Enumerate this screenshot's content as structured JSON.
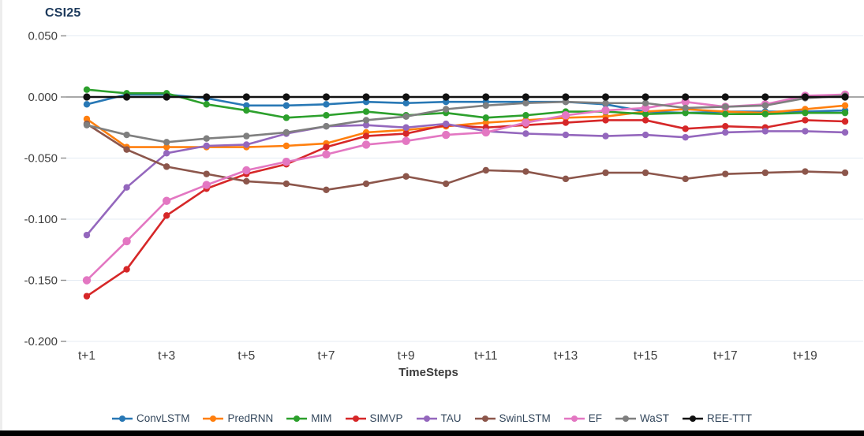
{
  "chart": {
    "title": "CSI25",
    "xlabel": "TimeSteps"
  },
  "chart_data": {
    "type": "line",
    "title": "CSI25",
    "xlabel": "TimeSteps",
    "ylabel": "",
    "ylim": [
      -0.2,
      0.05
    ],
    "grid": true,
    "legend_position": "bottom",
    "categories": [
      "t+1",
      "t+2",
      "t+3",
      "t+4",
      "t+5",
      "t+6",
      "t+7",
      "t+8",
      "t+9",
      "t+10",
      "t+11",
      "t+12",
      "t+13",
      "t+14",
      "t+15",
      "t+16",
      "t+17",
      "t+18",
      "t+19",
      "t+20"
    ],
    "xticks": [
      "t+1",
      "t+3",
      "t+5",
      "t+7",
      "t+9",
      "t+11",
      "t+13",
      "t+15",
      "t+17",
      "t+19"
    ],
    "xtick_steps": [
      1,
      3,
      5,
      7,
      9,
      11,
      13,
      15,
      17,
      19
    ],
    "ytick_values": [
      0.05,
      0.0,
      -0.05,
      -0.1,
      -0.15,
      -0.2
    ],
    "ytick_labels": [
      "0.050",
      "0.000",
      "-0.050",
      "-0.100",
      "-0.150",
      "-0.200"
    ],
    "gridline_color": "#e4ebf3",
    "axis_line_color": "#8c8c8c",
    "series": [
      {
        "name": "ConvLSTM",
        "color": "#2878b5",
        "values": [
          -0.006,
          0.002,
          0.002,
          -0.001,
          -0.007,
          -0.007,
          -0.006,
          -0.004,
          -0.005,
          -0.004,
          -0.004,
          -0.004,
          -0.004,
          -0.006,
          -0.012,
          -0.013,
          -0.012,
          -0.012,
          -0.012,
          -0.011
        ]
      },
      {
        "name": "PredRNN",
        "color": "#ff7f0e",
        "values": [
          -0.018,
          -0.041,
          -0.041,
          -0.041,
          -0.041,
          -0.04,
          -0.038,
          -0.029,
          -0.027,
          -0.024,
          -0.021,
          -0.019,
          -0.017,
          -0.016,
          -0.012,
          -0.01,
          -0.012,
          -0.013,
          -0.01,
          -0.007
        ]
      },
      {
        "name": "MIM",
        "color": "#2ca02c",
        "values": [
          0.006,
          0.003,
          0.003,
          -0.006,
          -0.011,
          -0.017,
          -0.015,
          -0.012,
          -0.015,
          -0.013,
          -0.017,
          -0.015,
          -0.012,
          -0.012,
          -0.014,
          -0.013,
          -0.014,
          -0.014,
          -0.013,
          -0.013
        ]
      },
      {
        "name": "SIMVP",
        "color": "#d62728",
        "values": [
          -0.163,
          -0.141,
          -0.097,
          -0.075,
          -0.063,
          -0.055,
          -0.041,
          -0.032,
          -0.03,
          -0.023,
          -0.025,
          -0.023,
          -0.021,
          -0.019,
          -0.019,
          -0.026,
          -0.024,
          -0.025,
          -0.019,
          -0.02
        ]
      },
      {
        "name": "TAU",
        "color": "#9467bd",
        "values": [
          -0.113,
          -0.074,
          -0.046,
          -0.04,
          -0.039,
          -0.03,
          -0.024,
          -0.023,
          -0.025,
          -0.022,
          -0.028,
          -0.03,
          -0.031,
          -0.032,
          -0.031,
          -0.033,
          -0.029,
          -0.028,
          -0.028,
          -0.029
        ]
      },
      {
        "name": "SwinLSTM",
        "color": "#8c564b",
        "values": [
          -0.022,
          -0.043,
          -0.057,
          -0.063,
          -0.069,
          -0.071,
          -0.076,
          -0.071,
          -0.065,
          -0.071,
          -0.06,
          -0.061,
          -0.067,
          -0.062,
          -0.062,
          -0.067,
          -0.063,
          -0.062,
          -0.061,
          -0.062
        ]
      },
      {
        "name": "EF",
        "color": "#e377c2",
        "values": [
          -0.15,
          -0.118,
          -0.085,
          -0.072,
          -0.06,
          -0.053,
          -0.047,
          -0.039,
          -0.036,
          -0.031,
          -0.029,
          -0.021,
          -0.015,
          -0.011,
          -0.009,
          -0.004,
          -0.008,
          -0.006,
          0.001,
          0.002
        ]
      },
      {
        "name": "WaST",
        "color": "#7f7f7f",
        "values": [
          -0.023,
          -0.031,
          -0.037,
          -0.034,
          -0.032,
          -0.029,
          -0.024,
          -0.019,
          -0.016,
          -0.01,
          -0.007,
          -0.005,
          -0.004,
          -0.005,
          -0.005,
          -0.009,
          -0.008,
          -0.007,
          -0.001,
          0.001
        ]
      },
      {
        "name": "REE-TTT",
        "color": "#111111",
        "values": [
          0.0,
          0.0,
          0.0,
          0.0,
          0.0,
          0.0,
          0.0,
          0.0,
          0.0,
          0.0,
          0.0,
          0.0,
          0.0,
          0.0,
          0.0,
          0.0,
          0.0,
          0.0,
          0.0,
          0.0
        ]
      }
    ]
  }
}
